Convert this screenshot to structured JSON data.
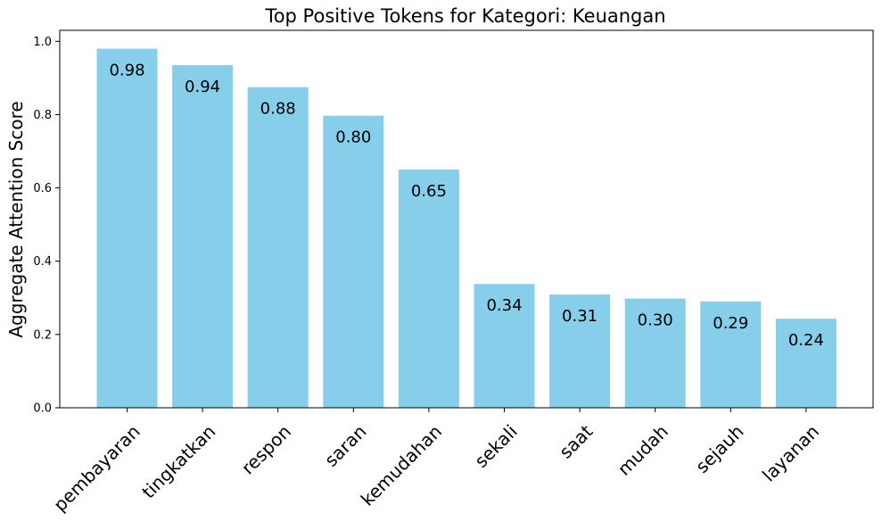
{
  "chart_data": {
    "type": "bar",
    "title": "Top Positive Tokens for Kategori: Keuangan",
    "xlabel": "",
    "ylabel": "Aggregate Attention Score",
    "categories": [
      "pembayaran",
      "tingkatkan",
      "respon",
      "saran",
      "kemudahan",
      "sekali",
      "saat",
      "mudah",
      "sejauh",
      "layanan"
    ],
    "values": [
      0.98,
      0.935,
      0.875,
      0.797,
      0.65,
      0.338,
      0.309,
      0.298,
      0.29,
      0.243
    ],
    "data_labels": [
      "0.98",
      "0.94",
      "0.88",
      "0.80",
      "0.65",
      "0.34",
      "0.31",
      "0.30",
      "0.29",
      "0.24"
    ],
    "ylim": [
      0,
      1.03
    ],
    "yticks": [
      0.0,
      0.2,
      0.4,
      0.6,
      0.8,
      1.0
    ],
    "ytick_labels": [
      "0.0",
      "0.2",
      "0.4",
      "0.6",
      "0.8",
      "1.0"
    ],
    "grid": false,
    "bar_color": "#87ceeb"
  }
}
